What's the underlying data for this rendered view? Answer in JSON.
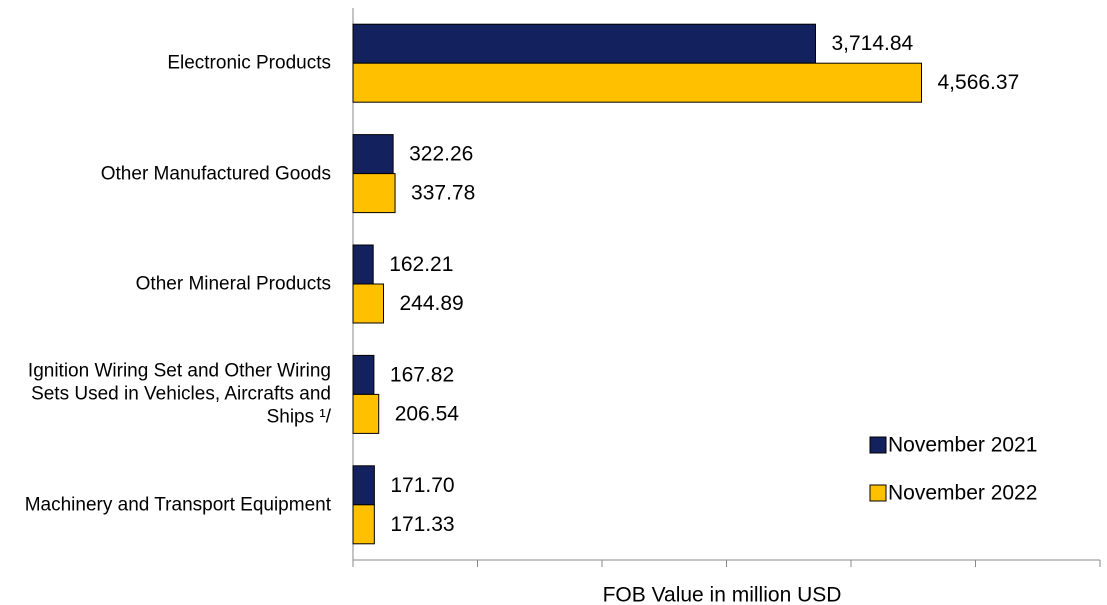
{
  "chart_data": {
    "type": "hbar",
    "x_label": "FOB Value in million USD",
    "categories": [
      "Electronic Products",
      "Other Manufactured Goods",
      "Other Mineral Products",
      "Ignition Wiring Set and Other Wiring Sets Used in Vehicles, Aircrafts and Ships ¹/",
      "Machinery and Transport Equipment"
    ],
    "series": [
      {
        "name": "November 2021",
        "color": "#13215e",
        "values": [
          3714.84,
          322.26,
          162.21,
          167.82,
          171.7
        ],
        "value_labels": [
          "3,714.84",
          "322.26",
          "162.21",
          "167.82",
          "171.70"
        ]
      },
      {
        "name": "November 2022",
        "color": "#ffc000",
        "values": [
          4566.37,
          337.78,
          244.89,
          206.54,
          171.33
        ],
        "value_labels": [
          "4,566.37",
          "337.78",
          "244.89",
          "206.54",
          "171.33"
        ]
      }
    ],
    "xlim": [
      0,
      6000
    ],
    "xticks": [
      0,
      1000,
      2000,
      3000,
      4000,
      5000,
      6000
    ],
    "legend": "lower right"
  }
}
